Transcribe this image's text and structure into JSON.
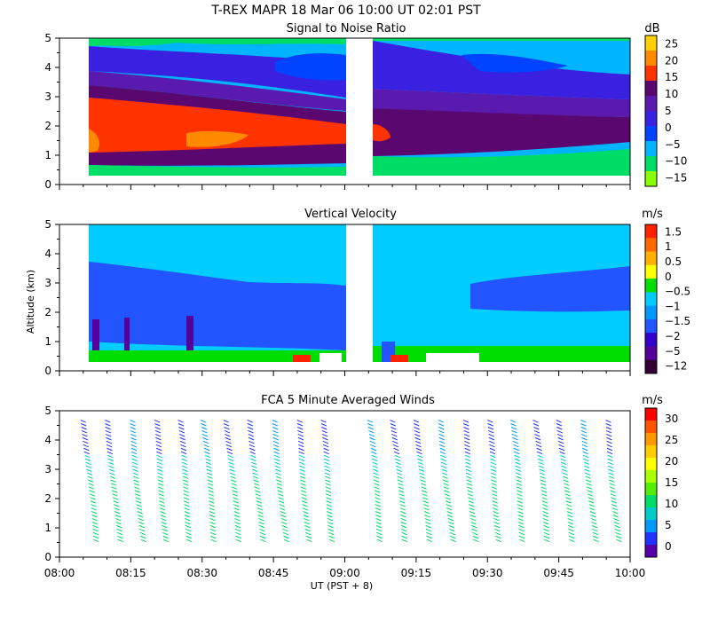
{
  "title": "T-REX   MAPR 18 Mar 06   10:00 UT   02:01   PST",
  "xlabel": "UT  (PST + 8)",
  "ylabel": "Altitude  (km)",
  "chart_data": [
    {
      "type": "heatmap",
      "title": "Signal to Noise Ratio",
      "unit": "dB",
      "ylim": [
        0,
        5
      ],
      "yticks": [
        "0",
        "1",
        "2",
        "3",
        "4",
        "5"
      ],
      "colorbar_labels": [
        "25",
        "20",
        "15",
        "10",
        "5",
        "0",
        "−5",
        "−10",
        "−15"
      ],
      "colorbar_colors": [
        "#ffd000",
        "#ff8a00",
        "#ff3300",
        "#5a0870",
        "#5a1ab0",
        "#3a20e0",
        "#0044ff",
        "#00b4ff",
        "#00dd66",
        "#88ff00"
      ],
      "fields": [
        {
          "from_alt": 0.4,
          "to_alt": 0.7,
          "value": -10
        },
        {
          "from_alt": 0.7,
          "to_alt": 1.0,
          "value": 8
        },
        {
          "from_alt": 1.0,
          "to_alt": 2.4,
          "value": 17
        },
        {
          "from_alt": 2.4,
          "to_alt": 3.4,
          "value": 9
        },
        {
          "from_alt": 3.4,
          "to_alt": 4.4,
          "value": 3
        },
        {
          "from_alt": 4.4,
          "to_alt": 5.0,
          "value": -5
        }
      ]
    },
    {
      "type": "heatmap",
      "title": "Vertical Velocity",
      "unit": "m/s",
      "ylim": [
        0,
        5
      ],
      "yticks": [
        "0",
        "1",
        "2",
        "3",
        "4",
        "5"
      ],
      "colorbar_labels": [
        "1.5",
        "1",
        "0.5",
        "0",
        "−0.5",
        "−1",
        "−1.5",
        "−2",
        "−5",
        "−12"
      ],
      "colorbar_colors": [
        "#ff2200",
        "#ff6a00",
        "#ffb000",
        "#ffff00",
        "#00dd00",
        "#00ccff",
        "#0099ff",
        "#2255ff",
        "#3300cc",
        "#550099",
        "#330033"
      ],
      "fields": [
        {
          "from_alt": 0.4,
          "to_alt": 3.8,
          "value": -1.5
        },
        {
          "from_alt": 3.8,
          "to_alt": 5.0,
          "value": -1
        }
      ]
    },
    {
      "type": "wind-barbs",
      "title": "FCA 5 Minute Averaged Winds",
      "unit": "m/s",
      "ylim": [
        0,
        5
      ],
      "yticks": [
        "0",
        "1",
        "2",
        "3",
        "4",
        "5"
      ],
      "colorbar_labels": [
        "30",
        "25",
        "20",
        "15",
        "10",
        "5",
        "0"
      ],
      "colorbar_colors": [
        "#ff0000",
        "#ff5500",
        "#ff9900",
        "#ffcc00",
        "#ffff00",
        "#aaff00",
        "#55ee00",
        "#00dd66",
        "#00cccc",
        "#0099ff",
        "#2233ff",
        "#5500aa"
      ],
      "x_times_min": [
        7,
        12,
        17,
        22,
        27,
        32,
        37,
        42,
        47,
        52,
        57,
        67,
        72,
        77,
        82,
        87,
        92,
        97,
        102,
        107,
        112,
        117
      ]
    }
  ],
  "xaxis": {
    "range_min": [
      0,
      120
    ],
    "ticks": [
      "08:00",
      "08:15",
      "08:30",
      "08:45",
      "09:00",
      "09:15",
      "09:30",
      "09:45",
      "10:00"
    ]
  }
}
